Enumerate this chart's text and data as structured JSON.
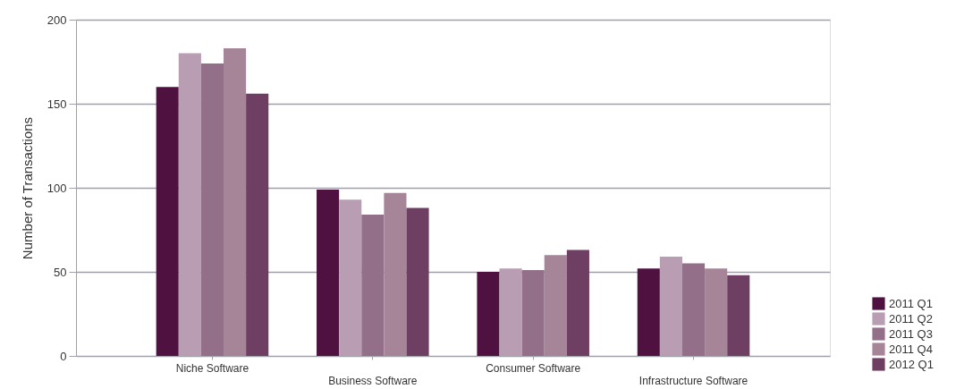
{
  "chart_data": {
    "type": "bar",
    "ylabel": "Number of Transactions",
    "categories": [
      "Niche Software",
      "Business Software",
      "Consumer Software",
      "Infrastructure Software"
    ],
    "series": [
      {
        "name": "2011 Q1",
        "color": "#4f1240",
        "values": [
          160,
          99,
          50,
          52
        ]
      },
      {
        "name": "2011 Q2",
        "color": "#b89db3",
        "values": [
          180,
          93,
          52,
          59
        ]
      },
      {
        "name": "2011 Q3",
        "color": "#936f89",
        "values": [
          174,
          84,
          51,
          55
        ]
      },
      {
        "name": "2011 Q4",
        "color": "#a68598",
        "values": [
          183,
          97,
          60,
          52
        ]
      },
      {
        "name": "2012 Q1",
        "color": "#6e3f62",
        "values": [
          156,
          88,
          63,
          48
        ]
      }
    ],
    "ylim": [
      0,
      200
    ],
    "yticks": [
      0,
      50,
      100,
      150,
      200
    ],
    "grid": "y",
    "legend": "bottom right"
  }
}
